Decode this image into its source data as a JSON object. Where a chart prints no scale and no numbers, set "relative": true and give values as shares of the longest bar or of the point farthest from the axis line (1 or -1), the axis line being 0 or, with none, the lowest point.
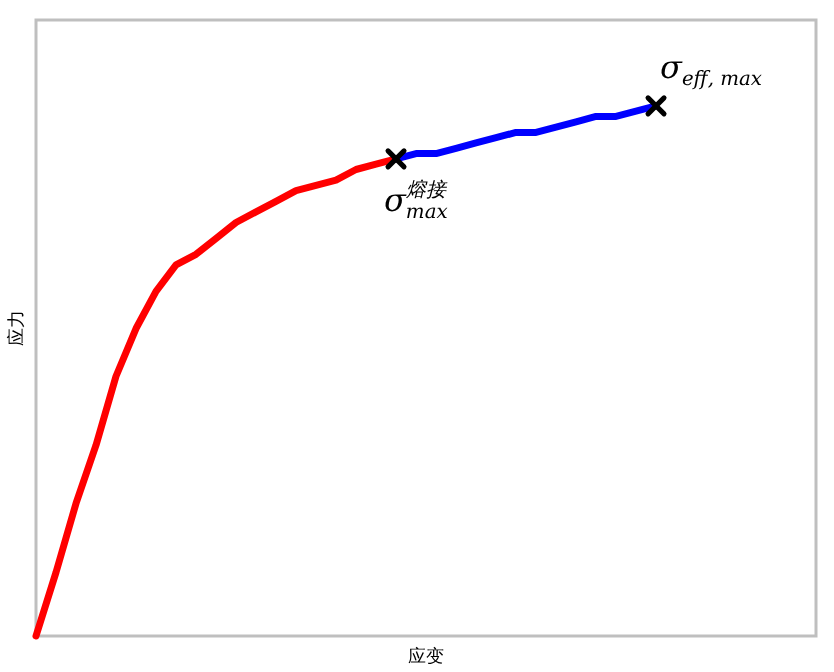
{
  "chart_data": {
    "type": "line",
    "relative": true,
    "xlabel": "应变",
    "ylabel": "应力",
    "categories": [
      null,
      null,
      null,
      null,
      null,
      null,
      null,
      null,
      null,
      null,
      null,
      null,
      null,
      null,
      null,
      null,
      null,
      null,
      null,
      null,
      null,
      null,
      null,
      null,
      null,
      null,
      null,
      null,
      null,
      null,
      null,
      null
    ],
    "series": [
      {
        "color": "#ff0000",
        "values": [
          0,
          0.12,
          0.25,
          0.36,
          0.49,
          0.58,
          0.65,
          0.7,
          0.72,
          0.75,
          0.78,
          0.8,
          0.82,
          0.84,
          0.85,
          0.86,
          0.88,
          0.89,
          0.9,
          null,
          null,
          null,
          null,
          null,
          null,
          null,
          null,
          null,
          null,
          null,
          null,
          null
        ]
      },
      {
        "color": "#0000ff",
        "values": [
          null,
          null,
          null,
          null,
          null,
          null,
          null,
          null,
          null,
          null,
          null,
          null,
          null,
          null,
          null,
          null,
          null,
          null,
          0.9,
          0.91,
          0.91,
          0.92,
          0.93,
          0.94,
          0.95,
          0.95,
          0.96,
          0.97,
          0.98,
          0.98,
          0.99,
          1
        ]
      }
    ],
    "annotations": [
      "σ$^{熔接}$$_{max}$",
      "σ$_{eff, max}$"
    ]
  }
}
